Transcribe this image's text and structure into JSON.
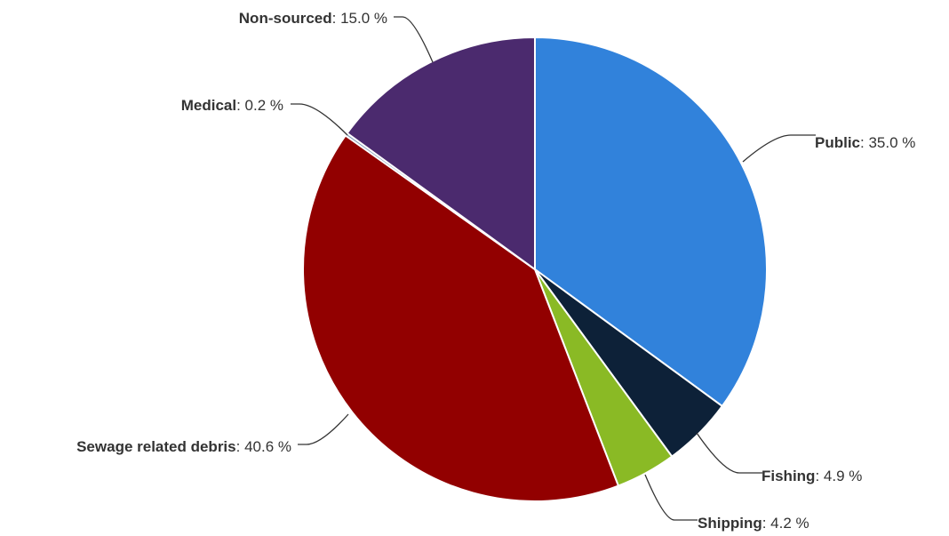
{
  "chart_data": {
    "type": "pie",
    "value_suffix": " %",
    "slices": [
      {
        "name": "Public",
        "value": 35.0,
        "display": "35.0",
        "color": "#3182db"
      },
      {
        "name": "Fishing",
        "value": 4.9,
        "display": "4.9",
        "color": "#0d2138"
      },
      {
        "name": "Shipping",
        "value": 4.2,
        "display": "4.2",
        "color": "#8aba25"
      },
      {
        "name": "Sewage related debris",
        "value": 40.6,
        "display": "40.6",
        "color": "#920000"
      },
      {
        "name": "Medical",
        "value": 0.2,
        "display": "0.2",
        "color": "#7f9ab5"
      },
      {
        "name": "Non-sourced",
        "value": 15.0,
        "display": "15.0",
        "color": "#4b2a6e"
      }
    ],
    "start_angle": "12 o'clock",
    "direction": "clockwise",
    "legend": "none"
  }
}
